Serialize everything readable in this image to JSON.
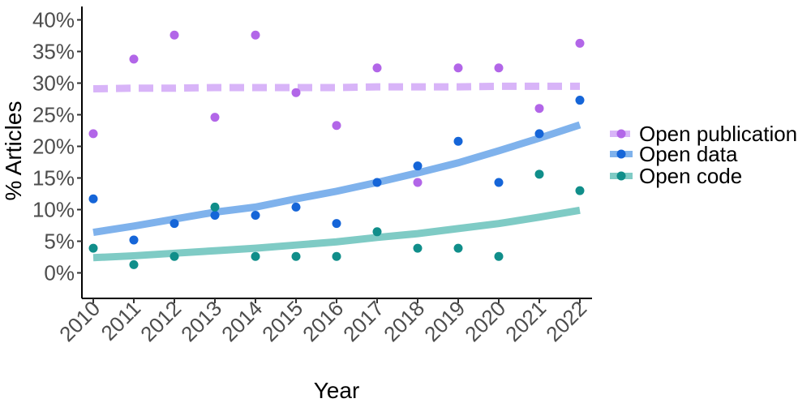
{
  "chart_data": {
    "type": "scatter",
    "xlabel": "Year",
    "ylabel": "% Articles",
    "x": [
      2010,
      2011,
      2012,
      2013,
      2014,
      2015,
      2016,
      2017,
      2018,
      2019,
      2020,
      2021,
      2022
    ],
    "xticks": [
      "2010",
      "2011",
      "2012",
      "2013",
      "2014",
      "2015",
      "2016",
      "2017",
      "2018",
      "2019",
      "2020",
      "2021",
      "2022"
    ],
    "yticks": [
      0,
      5,
      10,
      15,
      20,
      25,
      30,
      35,
      40
    ],
    "ytick_labels": [
      "0%",
      "5%",
      "10%",
      "15%",
      "20%",
      "25%",
      "30%",
      "35%",
      "40%"
    ],
    "ylim": [
      -4,
      42
    ],
    "grid": false,
    "legend_position": "right",
    "series": [
      {
        "name": "Open publication",
        "color": "#b266e8",
        "trend_color": "#d8b4f8",
        "trend_style": "dashed",
        "values": [
          22,
          33.8,
          37.6,
          24.6,
          37.6,
          28.5,
          23.3,
          32.4,
          14.3,
          32.4,
          32.4,
          26,
          36.3
        ],
        "trend": [
          29.1,
          29.2,
          29.2,
          29.3,
          29.3,
          29.3,
          29.3,
          29.4,
          29.4,
          29.4,
          29.5,
          29.5,
          29.5
        ]
      },
      {
        "name": "Open data",
        "color": "#1565d8",
        "trend_color": "#7fb2ec",
        "trend_style": "solid",
        "values": [
          11.7,
          5.2,
          7.8,
          9.1,
          9.1,
          10.4,
          7.8,
          14.3,
          16.9,
          20.8,
          14.3,
          22,
          27.3
        ],
        "trend": [
          6.4,
          7.4,
          8.5,
          9.6,
          10.4,
          11.7,
          12.9,
          14.3,
          15.8,
          17.4,
          19.3,
          21.3,
          23.4
        ]
      },
      {
        "name": "Open code",
        "color": "#108e8a",
        "trend_color": "#7fcbc5",
        "trend_style": "solid",
        "values": [
          3.9,
          1.3,
          2.6,
          10.4,
          2.6,
          2.6,
          2.6,
          6.5,
          3.9,
          3.9,
          2.6,
          15.6,
          13
        ],
        "trend": [
          2.4,
          2.7,
          3.1,
          3.5,
          3.9,
          4.4,
          4.9,
          5.6,
          6.2,
          7.0,
          7.8,
          8.8,
          9.9
        ]
      }
    ]
  }
}
